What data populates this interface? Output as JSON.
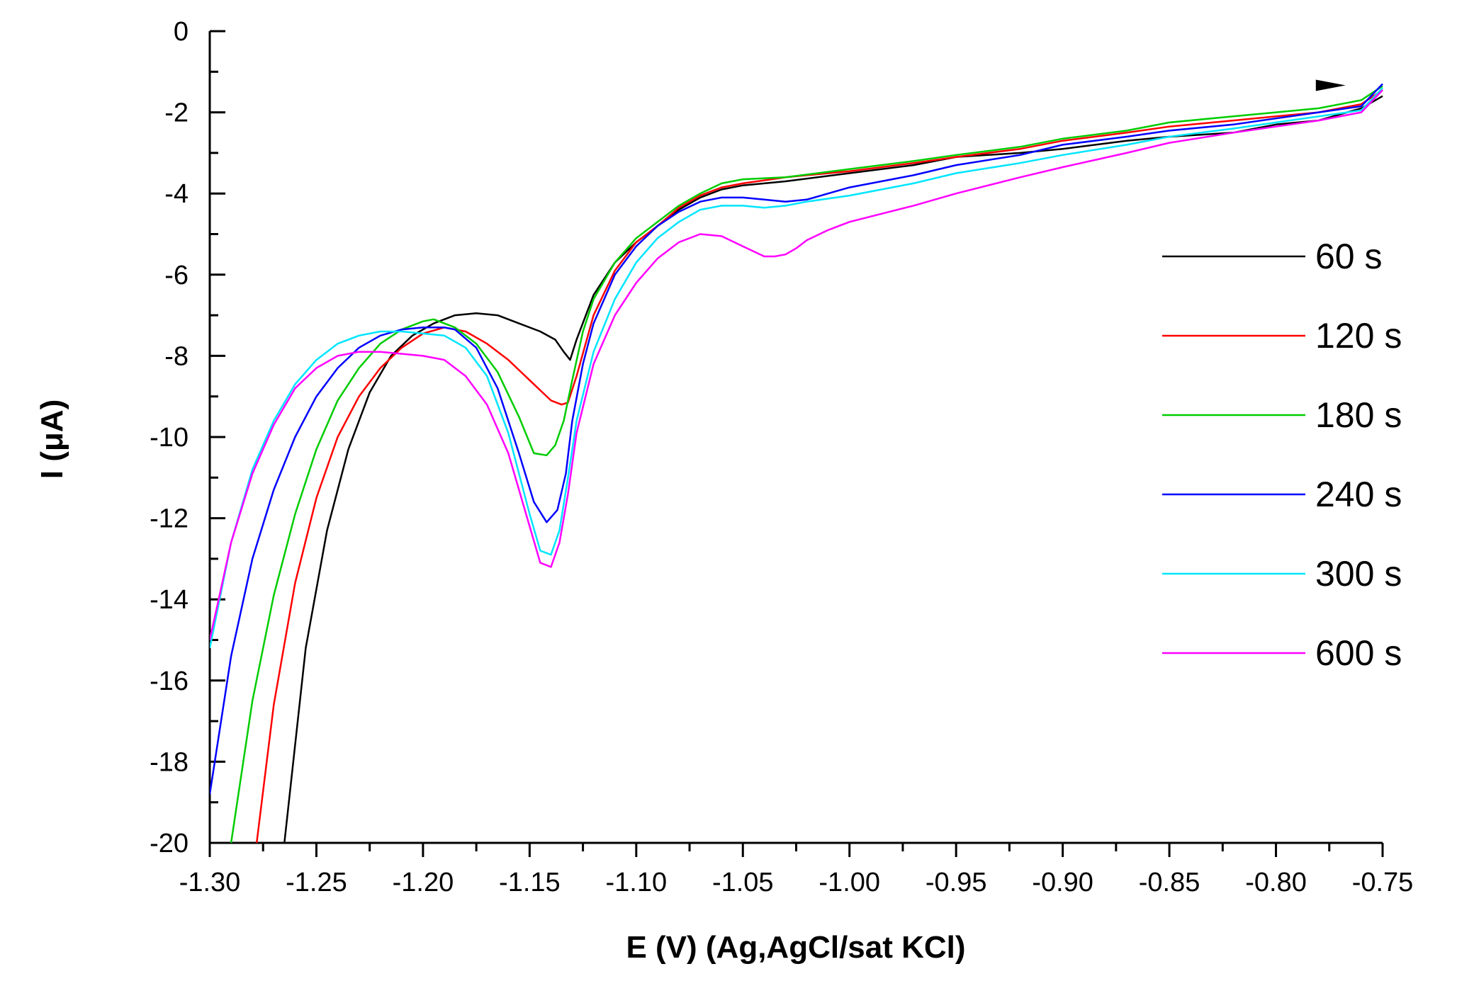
{
  "chart_data": {
    "type": "line",
    "title": "",
    "xlabel": "E (V) (Ag,AgCl/sat KCl)",
    "ylabel": "I (μA)",
    "xlim": [
      -1.3,
      -0.75
    ],
    "ylim": [
      -20,
      0
    ],
    "xticks": [
      -1.3,
      -1.25,
      -1.2,
      -1.15,
      -1.1,
      -1.05,
      -1.0,
      -0.95,
      -0.9,
      -0.85,
      -0.8,
      -0.75
    ],
    "xtick_labels": [
      "-1.30",
      "-1.25",
      "-1.20",
      "-1.15",
      "-1.10",
      "-1.05",
      "-1.00",
      "-0.95",
      "-0.90",
      "-0.85",
      "-0.80",
      "-0.75"
    ],
    "yticks": [
      0,
      -2,
      -4,
      -6,
      -8,
      -10,
      -12,
      -14,
      -16,
      -18,
      -20
    ],
    "ytick_labels": [
      "0",
      "-2",
      "-4",
      "-6",
      "-8",
      "-10",
      "-12",
      "-14",
      "-16",
      "-18",
      "-20"
    ],
    "grid": false,
    "legend_position": "right",
    "series": [
      {
        "name": "60 s",
        "color": "#000000",
        "x": [
          -1.265,
          -1.255,
          -1.245,
          -1.235,
          -1.225,
          -1.215,
          -1.205,
          -1.195,
          -1.185,
          -1.175,
          -1.165,
          -1.155,
          -1.145,
          -1.138,
          -1.134,
          -1.131,
          -1.128,
          -1.12,
          -1.11,
          -1.1,
          -1.09,
          -1.08,
          -1.07,
          -1.06,
          -1.05,
          -1.03,
          -1.0,
          -0.97,
          -0.95,
          -0.92,
          -0.9,
          -0.87,
          -0.85,
          -0.82,
          -0.8,
          -0.78,
          -0.76,
          -0.75
        ],
        "y": [
          -20,
          -15.2,
          -12.3,
          -10.3,
          -8.9,
          -8.0,
          -7.5,
          -7.2,
          -7.0,
          -6.95,
          -7.0,
          -7.2,
          -7.4,
          -7.6,
          -7.9,
          -8.1,
          -7.6,
          -6.5,
          -5.7,
          -5.2,
          -4.8,
          -4.4,
          -4.1,
          -3.9,
          -3.8,
          -3.7,
          -3.5,
          -3.3,
          -3.1,
          -3.0,
          -2.9,
          -2.7,
          -2.6,
          -2.5,
          -2.3,
          -2.2,
          -1.9,
          -1.6
        ]
      },
      {
        "name": "120 s",
        "color": "#ff0000",
        "x": [
          -1.278,
          -1.27,
          -1.26,
          -1.25,
          -1.24,
          -1.23,
          -1.22,
          -1.21,
          -1.2,
          -1.19,
          -1.18,
          -1.17,
          -1.16,
          -1.15,
          -1.14,
          -1.135,
          -1.132,
          -1.128,
          -1.12,
          -1.11,
          -1.1,
          -1.09,
          -1.08,
          -1.07,
          -1.06,
          -1.05,
          -1.03,
          -1.0,
          -0.97,
          -0.95,
          -0.92,
          -0.9,
          -0.87,
          -0.85,
          -0.82,
          -0.8,
          -0.78,
          -0.76,
          -0.75
        ],
        "y": [
          -20,
          -16.6,
          -13.6,
          -11.5,
          -10.0,
          -9.0,
          -8.3,
          -7.8,
          -7.45,
          -7.3,
          -7.4,
          -7.7,
          -8.1,
          -8.6,
          -9.1,
          -9.2,
          -9.15,
          -8.5,
          -7.0,
          -5.9,
          -5.2,
          -4.8,
          -4.35,
          -4.05,
          -3.85,
          -3.75,
          -3.6,
          -3.45,
          -3.25,
          -3.1,
          -2.9,
          -2.7,
          -2.5,
          -2.35,
          -2.2,
          -2.1,
          -2.0,
          -1.8,
          -1.45
        ]
      },
      {
        "name": "180 s",
        "color": "#00cc00",
        "x": [
          -1.29,
          -1.28,
          -1.27,
          -1.26,
          -1.25,
          -1.24,
          -1.23,
          -1.22,
          -1.21,
          -1.2,
          -1.195,
          -1.185,
          -1.175,
          -1.165,
          -1.155,
          -1.148,
          -1.142,
          -1.138,
          -1.134,
          -1.13,
          -1.125,
          -1.12,
          -1.11,
          -1.1,
          -1.09,
          -1.08,
          -1.07,
          -1.06,
          -1.05,
          -1.03,
          -1.0,
          -0.97,
          -0.95,
          -0.92,
          -0.9,
          -0.87,
          -0.85,
          -0.82,
          -0.8,
          -0.78,
          -0.76,
          -0.75
        ],
        "y": [
          -20,
          -16.5,
          -13.9,
          -11.9,
          -10.3,
          -9.1,
          -8.3,
          -7.7,
          -7.35,
          -7.15,
          -7.1,
          -7.3,
          -7.7,
          -8.4,
          -9.5,
          -10.4,
          -10.45,
          -10.2,
          -9.6,
          -8.6,
          -7.4,
          -6.6,
          -5.7,
          -5.1,
          -4.7,
          -4.3,
          -4.0,
          -3.75,
          -3.65,
          -3.6,
          -3.4,
          -3.2,
          -3.05,
          -2.85,
          -2.65,
          -2.45,
          -2.25,
          -2.1,
          -2.0,
          -1.9,
          -1.7,
          -1.35
        ]
      },
      {
        "name": "240 s",
        "color": "#0000ff",
        "x": [
          -1.3,
          -1.29,
          -1.28,
          -1.27,
          -1.26,
          -1.25,
          -1.24,
          -1.23,
          -1.22,
          -1.21,
          -1.2,
          -1.19,
          -1.185,
          -1.175,
          -1.165,
          -1.155,
          -1.148,
          -1.142,
          -1.137,
          -1.133,
          -1.13,
          -1.125,
          -1.12,
          -1.11,
          -1.1,
          -1.09,
          -1.08,
          -1.07,
          -1.06,
          -1.05,
          -1.04,
          -1.03,
          -1.02,
          -1.01,
          -1.0,
          -0.97,
          -0.95,
          -0.92,
          -0.9,
          -0.87,
          -0.85,
          -0.82,
          -0.8,
          -0.78,
          -0.76,
          -0.75
        ],
        "y": [
          -18.8,
          -15.4,
          -13.0,
          -11.3,
          -10.0,
          -9.0,
          -8.3,
          -7.8,
          -7.5,
          -7.35,
          -7.3,
          -7.3,
          -7.35,
          -7.8,
          -8.8,
          -10.4,
          -11.6,
          -12.1,
          -11.8,
          -10.9,
          -9.6,
          -8.2,
          -7.2,
          -6.0,
          -5.3,
          -4.8,
          -4.45,
          -4.2,
          -4.1,
          -4.1,
          -4.15,
          -4.2,
          -4.15,
          -4.0,
          -3.85,
          -3.55,
          -3.3,
          -3.05,
          -2.8,
          -2.6,
          -2.45,
          -2.3,
          -2.15,
          -2.0,
          -1.85,
          -1.3
        ]
      },
      {
        "name": "300 s",
        "color": "#00e5ff",
        "x": [
          -1.3,
          -1.29,
          -1.28,
          -1.27,
          -1.26,
          -1.25,
          -1.24,
          -1.23,
          -1.22,
          -1.21,
          -1.2,
          -1.19,
          -1.18,
          -1.17,
          -1.16,
          -1.15,
          -1.145,
          -1.14,
          -1.136,
          -1.132,
          -1.128,
          -1.12,
          -1.11,
          -1.1,
          -1.09,
          -1.08,
          -1.07,
          -1.06,
          -1.05,
          -1.04,
          -1.03,
          -1.02,
          -1.0,
          -0.97,
          -0.95,
          -0.92,
          -0.9,
          -0.87,
          -0.85,
          -0.82,
          -0.8,
          -0.78,
          -0.76,
          -0.75
        ],
        "y": [
          -15.2,
          -12.6,
          -10.8,
          -9.6,
          -8.7,
          -8.1,
          -7.7,
          -7.5,
          -7.4,
          -7.4,
          -7.45,
          -7.5,
          -7.8,
          -8.5,
          -9.9,
          -11.9,
          -12.8,
          -12.9,
          -12.3,
          -11.0,
          -9.6,
          -7.9,
          -6.6,
          -5.7,
          -5.1,
          -4.7,
          -4.4,
          -4.3,
          -4.3,
          -4.35,
          -4.3,
          -4.2,
          -4.05,
          -3.75,
          -3.5,
          -3.25,
          -3.05,
          -2.8,
          -2.6,
          -2.4,
          -2.25,
          -2.1,
          -1.95,
          -1.4
        ]
      },
      {
        "name": "600 s",
        "color": "#ff00ff",
        "x": [
          -1.3,
          -1.29,
          -1.28,
          -1.27,
          -1.26,
          -1.25,
          -1.24,
          -1.23,
          -1.22,
          -1.21,
          -1.2,
          -1.19,
          -1.18,
          -1.17,
          -1.16,
          -1.15,
          -1.145,
          -1.14,
          -1.136,
          -1.132,
          -1.128,
          -1.12,
          -1.11,
          -1.1,
          -1.09,
          -1.08,
          -1.07,
          -1.06,
          -1.05,
          -1.04,
          -1.035,
          -1.03,
          -1.025,
          -1.02,
          -1.01,
          -1.0,
          -0.97,
          -0.95,
          -0.92,
          -0.9,
          -0.87,
          -0.85,
          -0.82,
          -0.8,
          -0.78,
          -0.76,
          -0.75
        ],
        "y": [
          -15.0,
          -12.6,
          -10.9,
          -9.7,
          -8.8,
          -8.3,
          -8.0,
          -7.9,
          -7.9,
          -7.95,
          -8.0,
          -8.1,
          -8.5,
          -9.2,
          -10.4,
          -12.2,
          -13.1,
          -13.2,
          -12.6,
          -11.4,
          -9.9,
          -8.2,
          -7.0,
          -6.2,
          -5.6,
          -5.2,
          -5.0,
          -5.05,
          -5.3,
          -5.55,
          -5.55,
          -5.5,
          -5.35,
          -5.15,
          -4.9,
          -4.7,
          -4.3,
          -4.0,
          -3.6,
          -3.35,
          -3.0,
          -2.75,
          -2.5,
          -2.35,
          -2.2,
          -2.0,
          -1.45
        ]
      }
    ],
    "annotations": [
      {
        "type": "arrow",
        "text": "",
        "x": -0.77,
        "y": -1.3,
        "direction": "right"
      }
    ]
  }
}
